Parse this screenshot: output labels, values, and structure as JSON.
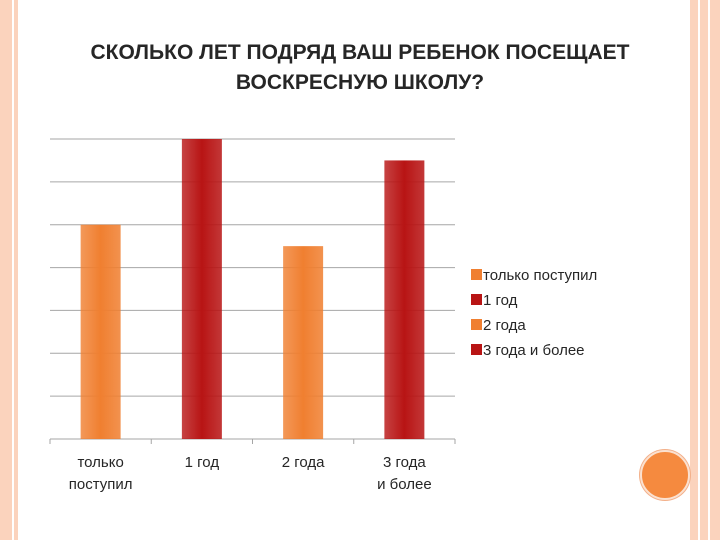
{
  "slide": {
    "title": "СКОЛЬКО ЛЕТ ПОДРЯД ВАШ РЕБЕНОК ПОСЕЩАЕТ ВОСКРЕСНУЮ ШКОЛУ?"
  },
  "colors": {
    "orange_bar": "#f07f30",
    "red_bar": "#b81414",
    "border_peach": "#fbd3bd",
    "accent_circle": "#f58a3f"
  },
  "chart_data": {
    "type": "bar",
    "title": "СКОЛЬКО ЛЕТ ПОДРЯД ВАШ РЕБЕНОК ПОСЕЩАЕТ ВОСКРЕСНУЮ ШКОЛУ?",
    "categories": [
      "только поступил",
      "1 год",
      "2 года",
      "3 года и более"
    ],
    "values": [
      5,
      7,
      4.5,
      6.5
    ],
    "bar_colors": [
      "#f07f30",
      "#b81414",
      "#f07f30",
      "#b81414"
    ],
    "ylim": [
      0,
      7
    ],
    "grid": true,
    "legend": {
      "placement": "right",
      "entries": [
        "только поступил",
        "1 год",
        "2 года",
        "3 года и более"
      ]
    }
  }
}
